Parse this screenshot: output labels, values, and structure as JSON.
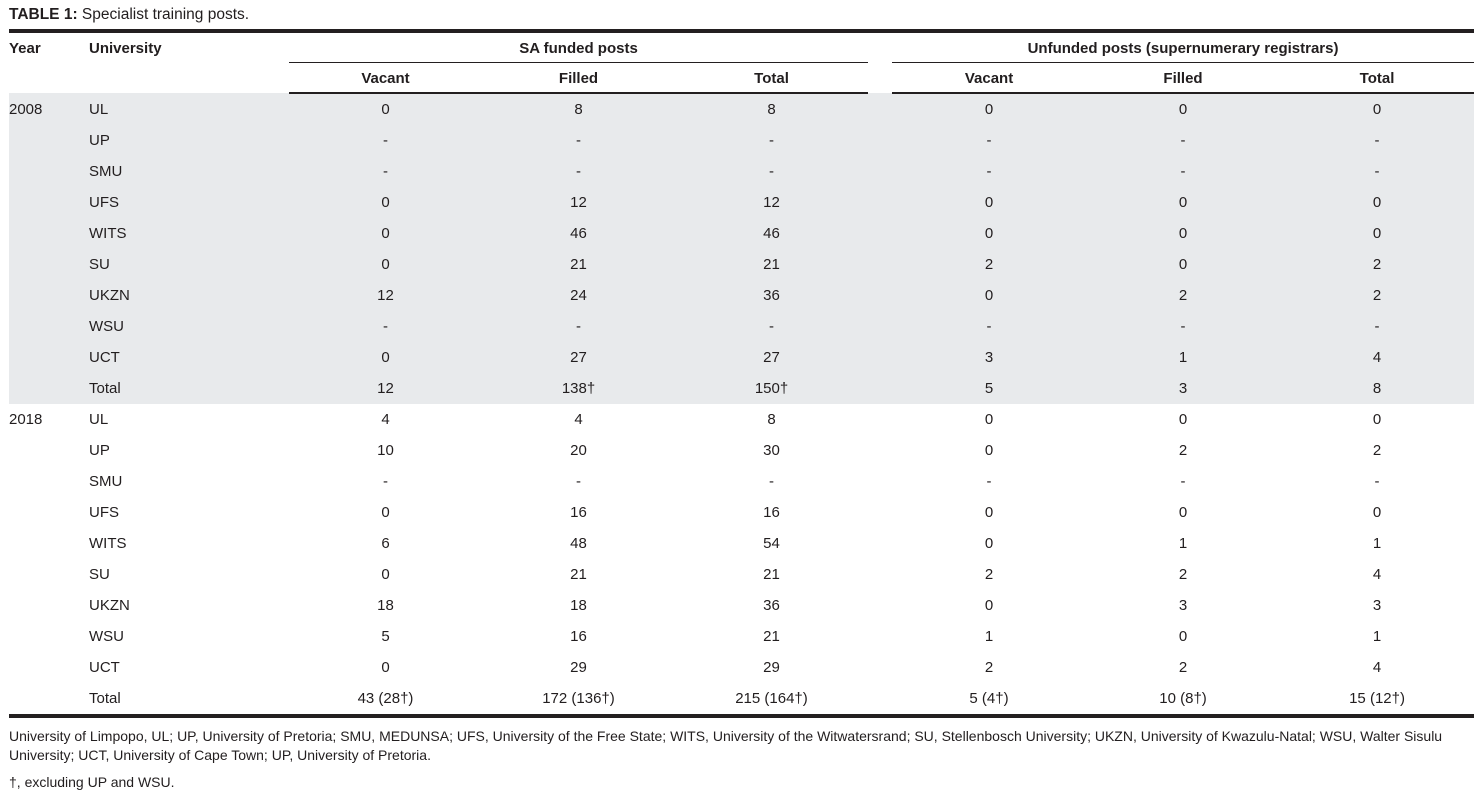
{
  "caption": {
    "label": "TABLE 1:",
    "text": "Specialist training posts."
  },
  "table": {
    "col_headers": {
      "year": "Year",
      "university": "University",
      "group1": "SA funded posts",
      "group2": "Unfunded posts (supernumerary registrars)",
      "sub": [
        "Vacant",
        "Filled",
        "Total",
        "Vacant",
        "Filled",
        "Total"
      ]
    },
    "groups": [
      {
        "year": "2008",
        "shaded": true,
        "rows": [
          {
            "university": "UL",
            "values": [
              "0",
              "8",
              "8",
              "0",
              "0",
              "0"
            ]
          },
          {
            "university": "UP",
            "values": [
              "-",
              "-",
              "-",
              "-",
              "-",
              "-"
            ]
          },
          {
            "university": "SMU",
            "values": [
              "-",
              "-",
              "-",
              "-",
              "-",
              "-"
            ]
          },
          {
            "university": "UFS",
            "values": [
              "0",
              "12",
              "12",
              "0",
              "0",
              "0"
            ]
          },
          {
            "university": "WITS",
            "values": [
              "0",
              "46",
              "46",
              "0",
              "0",
              "0"
            ]
          },
          {
            "university": "SU",
            "values": [
              "0",
              "21",
              "21",
              "2",
              "0",
              "2"
            ]
          },
          {
            "university": "UKZN",
            "values": [
              "12",
              "24",
              "36",
              "0",
              "2",
              "2"
            ]
          },
          {
            "university": "WSU",
            "values": [
              "-",
              "-",
              "-",
              "-",
              "-",
              "-"
            ]
          },
          {
            "university": "UCT",
            "values": [
              "0",
              "27",
              "27",
              "3",
              "1",
              "4"
            ]
          },
          {
            "university": "Total",
            "values": [
              "12",
              "138†",
              "150†",
              "5",
              "3",
              "8"
            ]
          }
        ]
      },
      {
        "year": "2018",
        "shaded": false,
        "rows": [
          {
            "university": "UL",
            "values": [
              "4",
              "4",
              "8",
              "0",
              "0",
              "0"
            ]
          },
          {
            "university": "UP",
            "values": [
              "10",
              "20",
              "30",
              "0",
              "2",
              "2"
            ]
          },
          {
            "university": "SMU",
            "values": [
              "-",
              "-",
              "-",
              "-",
              "-",
              "-"
            ]
          },
          {
            "university": "UFS",
            "values": [
              "0",
              "16",
              "16",
              "0",
              "0",
              "0"
            ]
          },
          {
            "university": "WITS",
            "values": [
              "6",
              "48",
              "54",
              "0",
              "1",
              "1"
            ]
          },
          {
            "university": "SU",
            "values": [
              "0",
              "21",
              "21",
              "2",
              "2",
              "4"
            ]
          },
          {
            "university": "UKZN",
            "values": [
              "18",
              "18",
              "36",
              "0",
              "3",
              "3"
            ]
          },
          {
            "university": "WSU",
            "values": [
              "5",
              "16",
              "21",
              "1",
              "0",
              "1"
            ]
          },
          {
            "university": "UCT",
            "values": [
              "0",
              "29",
              "29",
              "2",
              "2",
              "4"
            ]
          },
          {
            "university": "Total",
            "values": [
              "43 (28†)",
              "172 (136†)",
              "215 (164†)",
              "5 (4†)",
              "10 (8†)",
              "15 (12†)"
            ]
          }
        ]
      }
    ]
  },
  "footnotes": {
    "abbreviations": "University of Limpopo, UL; UP, University of Pretoria; SMU, MEDUNSA; UFS, University of the Free State; WITS, University of the Witwatersrand; SU, Stellenbosch University; UKZN, University of Kwazulu-Natal; WSU, Walter Sisulu University; UCT, University of Cape Town; UP, University of Pretoria.",
    "dagger": "†, excluding UP and WSU."
  },
  "colors": {
    "text": "#221e1f",
    "rule": "#231f20",
    "shaded_row": "#e8eaec"
  }
}
